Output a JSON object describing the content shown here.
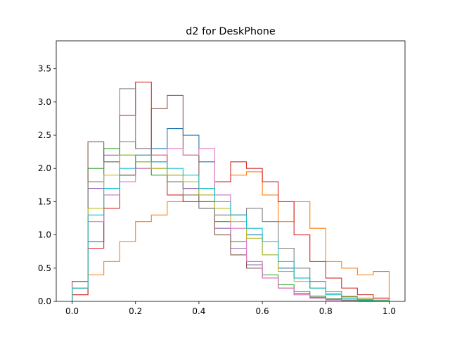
{
  "chart_data": {
    "type": "line",
    "title": "d2 for DeskPhone",
    "xlabel": "",
    "ylabel": "",
    "xlim": [
      -0.05,
      1.05
    ],
    "ylim": [
      0,
      3.92
    ],
    "x_ticks": [
      0.0,
      0.2,
      0.4,
      0.6,
      0.8,
      1.0
    ],
    "x_tick_labels": [
      "0.0",
      "0.2",
      "0.4",
      "0.6",
      "0.8",
      "1.0"
    ],
    "y_ticks": [
      0.0,
      0.5,
      1.0,
      1.5,
      2.0,
      2.5,
      3.0,
      3.5
    ],
    "y_tick_labels": [
      "0.0",
      "0.5",
      "1.0",
      "1.5",
      "2.0",
      "2.5",
      "3.0",
      "3.5"
    ],
    "grid": false,
    "legend": "none",
    "step_style": "histogram-step",
    "series": [
      {
        "color": "#1f77b4",
        "x": [
          0.0,
          0.05,
          0.1,
          0.15,
          0.2,
          0.25,
          0.3,
          0.35,
          0.4,
          0.45,
          0.5,
          0.55,
          0.6,
          0.65,
          0.7,
          0.75,
          0.8,
          0.85,
          0.9,
          0.95,
          1.0
        ],
        "values": [
          0.1,
          0.9,
          1.6,
          1.9,
          2.1,
          2.3,
          2.6,
          2.5,
          2.1,
          1.6,
          1.3,
          1.0,
          0.7,
          0.5,
          0.35,
          0.2,
          0.1,
          0.05,
          0.02,
          0.01,
          0.0
        ]
      },
      {
        "color": "#ff7f0e",
        "x": [
          0.0,
          0.05,
          0.1,
          0.15,
          0.2,
          0.25,
          0.3,
          0.35,
          0.4,
          0.45,
          0.5,
          0.55,
          0.6,
          0.65,
          0.7,
          0.75,
          0.8,
          0.85,
          0.9,
          0.95,
          1.0
        ],
        "values": [
          0.1,
          0.4,
          0.6,
          0.9,
          1.2,
          1.3,
          1.5,
          1.6,
          1.7,
          1.8,
          1.9,
          1.95,
          1.6,
          1.2,
          1.5,
          1.1,
          0.6,
          0.5,
          0.4,
          0.45,
          0.0
        ]
      },
      {
        "color": "#2ca02c",
        "x": [
          0.0,
          0.05,
          0.1,
          0.15,
          0.2,
          0.25,
          0.3,
          0.35,
          0.4,
          0.45,
          0.5,
          0.55,
          0.6,
          0.65,
          0.7,
          0.75,
          0.8,
          0.85,
          0.9,
          0.95,
          1.0
        ],
        "values": [
          0.2,
          2.0,
          2.3,
          2.2,
          2.0,
          1.9,
          1.8,
          1.7,
          1.5,
          1.2,
          0.9,
          0.6,
          0.4,
          0.25,
          0.15,
          0.08,
          0.04,
          0.02,
          0.01,
          0.0,
          0.0
        ]
      },
      {
        "color": "#d62728",
        "x": [
          0.0,
          0.05,
          0.1,
          0.15,
          0.2,
          0.25,
          0.3,
          0.35,
          0.4,
          0.45,
          0.5,
          0.55,
          0.6,
          0.65,
          0.7,
          0.75,
          0.8,
          0.85,
          0.9,
          0.95,
          1.0
        ],
        "values": [
          0.1,
          0.8,
          1.4,
          2.8,
          3.3,
          2.2,
          1.6,
          1.5,
          1.6,
          1.8,
          2.1,
          2.0,
          1.8,
          1.5,
          1.0,
          0.6,
          0.35,
          0.2,
          0.1,
          0.05,
          0.0
        ]
      },
      {
        "color": "#9467bd",
        "x": [
          0.0,
          0.05,
          0.1,
          0.15,
          0.2,
          0.25,
          0.3,
          0.35,
          0.4,
          0.45,
          0.5,
          0.55,
          0.6,
          0.65,
          0.7,
          0.75,
          0.8,
          0.85,
          0.9,
          0.95,
          1.0
        ],
        "values": [
          0.2,
          1.7,
          2.2,
          2.4,
          2.3,
          2.1,
          1.9,
          1.7,
          1.4,
          1.1,
          0.8,
          0.55,
          0.35,
          0.2,
          0.12,
          0.06,
          0.03,
          0.01,
          0.0,
          0.0,
          0.0
        ]
      },
      {
        "color": "#8c564b",
        "x": [
          0.0,
          0.05,
          0.1,
          0.15,
          0.2,
          0.25,
          0.3,
          0.35,
          0.4,
          0.45,
          0.5,
          0.55,
          0.6,
          0.65,
          0.7,
          0.75,
          0.8,
          0.85,
          0.9,
          0.95,
          1.0
        ],
        "values": [
          0.3,
          2.4,
          2.1,
          1.9,
          2.2,
          2.9,
          3.1,
          2.2,
          1.5,
          1.0,
          0.7,
          0.5,
          0.35,
          0.2,
          0.1,
          0.05,
          0.02,
          0.01,
          0.0,
          0.0,
          0.0
        ]
      },
      {
        "color": "#e377c2",
        "x": [
          0.0,
          0.05,
          0.1,
          0.15,
          0.2,
          0.25,
          0.3,
          0.35,
          0.4,
          0.45,
          0.5,
          0.55,
          0.6,
          0.65,
          0.7,
          0.75,
          0.8,
          0.85,
          0.9,
          0.95,
          1.0
        ],
        "values": [
          0.2,
          1.2,
          1.6,
          1.8,
          2.0,
          2.2,
          2.3,
          2.2,
          2.3,
          1.6,
          1.1,
          0.6,
          0.35,
          0.2,
          0.1,
          0.05,
          0.02,
          0.01,
          0.0,
          0.0,
          0.0
        ]
      },
      {
        "color": "#7f7f7f",
        "x": [
          0.0,
          0.05,
          0.1,
          0.15,
          0.2,
          0.25,
          0.3,
          0.35,
          0.4,
          0.45,
          0.5,
          0.55,
          0.6,
          0.65,
          0.7,
          0.75,
          0.8,
          0.85,
          0.9,
          0.95,
          1.0
        ],
        "values": [
          0.2,
          1.8,
          2.1,
          3.2,
          2.3,
          2.0,
          1.8,
          1.6,
          1.4,
          1.3,
          1.3,
          1.4,
          1.2,
          0.8,
          0.5,
          0.3,
          0.15,
          0.07,
          0.03,
          0.01,
          0.0
        ]
      },
      {
        "color": "#bcbd22",
        "x": [
          0.0,
          0.05,
          0.1,
          0.15,
          0.2,
          0.25,
          0.3,
          0.35,
          0.4,
          0.45,
          0.5,
          0.55,
          0.6,
          0.65,
          0.7,
          0.75,
          0.8,
          0.85,
          0.9,
          0.95,
          1.0
        ],
        "values": [
          0.2,
          1.4,
          1.9,
          2.2,
          2.1,
          2.0,
          1.9,
          1.8,
          1.6,
          1.4,
          1.2,
          0.95,
          0.7,
          0.45,
          0.3,
          0.2,
          0.12,
          0.08,
          0.05,
          0.02,
          0.0
        ]
      },
      {
        "color": "#17becf",
        "x": [
          0.0,
          0.05,
          0.1,
          0.15,
          0.2,
          0.25,
          0.3,
          0.35,
          0.4,
          0.45,
          0.5,
          0.55,
          0.6,
          0.65,
          0.7,
          0.75,
          0.8,
          0.85,
          0.9,
          0.95,
          1.0
        ],
        "values": [
          0.2,
          1.3,
          1.7,
          2.0,
          2.2,
          2.1,
          2.0,
          1.9,
          1.7,
          1.5,
          1.3,
          1.1,
          0.9,
          0.6,
          0.35,
          0.2,
          0.1,
          0.05,
          0.02,
          0.01,
          0.0
        ]
      }
    ]
  }
}
